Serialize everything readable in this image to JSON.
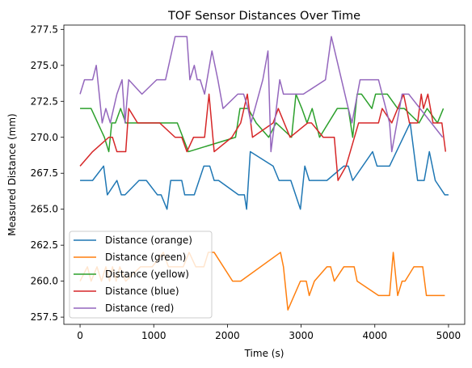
{
  "chart_data": {
    "type": "line",
    "title": "TOF Sensor Distances Over Time",
    "xlabel": "Time (s)",
    "ylabel": "Measured Distance (mm)",
    "xlim": [
      -220,
      5220
    ],
    "ylim": [
      257.0,
      277.8
    ],
    "x_ticks": [
      0,
      1000,
      2000,
      3000,
      4000,
      5000
    ],
    "x_tick_labels": [
      "0",
      "1000",
      "2000",
      "3000",
      "4000",
      "5000"
    ],
    "y_ticks": [
      257.5,
      260.0,
      262.5,
      265.0,
      267.5,
      270.0,
      272.5,
      275.0,
      277.5
    ],
    "y_tick_labels": [
      "257.5",
      "260.0",
      "262.5",
      "265.0",
      "267.5",
      "270.0",
      "272.5",
      "275.0",
      "277.5"
    ],
    "grid": false,
    "legend_position": "lower-left",
    "series": [
      {
        "name": "Distance (orange)",
        "color": "#1f77b4",
        "x": [
          0,
          170,
          320,
          370,
          500,
          560,
          610,
          800,
          900,
          1050,
          1100,
          1180,
          1230,
          1380,
          1420,
          1550,
          1680,
          1760,
          1820,
          1880,
          2150,
          2230,
          2260,
          2310,
          2620,
          2700,
          2860,
          2990,
          3050,
          3110,
          3350,
          3580,
          3640,
          3700,
          3970,
          4030,
          4200,
          4480,
          4580,
          4670,
          4740,
          4820,
          4950,
          5000
        ],
        "y": [
          267,
          267,
          268,
          266,
          267,
          266,
          266,
          267,
          267,
          266,
          266,
          265,
          267,
          267,
          266,
          266,
          268,
          268,
          267,
          267,
          266,
          266,
          265,
          269,
          268,
          267,
          267,
          265,
          268,
          267,
          267,
          268,
          268,
          267,
          269,
          268,
          268,
          271,
          267,
          267,
          269,
          267,
          266,
          266
        ]
      },
      {
        "name": "Distance (green)",
        "color": "#ff7f0e",
        "x": [
          0,
          100,
          150,
          230,
          290,
          350,
          400,
          440,
          490,
          540,
          620,
          820,
          980,
          1130,
          1200,
          1300,
          1400,
          1480,
          1570,
          1680,
          1740,
          1820,
          2070,
          2180,
          2720,
          2760,
          2820,
          2990,
          3070,
          3110,
          3180,
          3350,
          3400,
          3450,
          3580,
          3720,
          3760,
          4050,
          4200,
          4250,
          4310,
          4370,
          4410,
          4530,
          4650,
          4700,
          4850,
          4950
        ],
        "y": [
          260,
          261,
          260,
          261,
          260,
          261,
          260,
          261,
          260,
          261,
          260,
          261,
          261,
          262,
          261,
          261,
          261,
          262,
          261,
          261,
          262,
          262,
          260,
          260,
          262,
          261,
          258,
          260,
          260,
          259,
          260,
          261,
          261,
          260,
          261,
          261,
          260,
          259,
          259,
          262,
          259,
          260,
          260,
          261,
          261,
          259,
          259,
          259
        ]
      },
      {
        "name": "Distance (yellow)",
        "color": "#2ca02c",
        "x": [
          0,
          150,
          330,
          390,
          430,
          480,
          550,
          620,
          980,
          1320,
          1470,
          2110,
          2170,
          2280,
          2390,
          2560,
          2660,
          2870,
          2930,
          3010,
          3080,
          3150,
          3250,
          3490,
          3640,
          3700,
          3760,
          3820,
          3960,
          4010,
          4170,
          4310,
          4400,
          4600,
          4710,
          4850,
          4930
        ],
        "y": [
          272,
          272,
          270,
          269,
          271,
          271,
          272,
          271,
          271,
          271,
          269,
          270,
          272,
          272,
          271,
          270,
          271,
          270,
          273,
          272,
          271,
          272,
          270,
          272,
          272,
          270,
          273,
          273,
          272,
          273,
          273,
          272,
          272,
          271,
          272,
          271,
          272
        ]
      },
      {
        "name": "Distance (blue)",
        "color": "#d62728",
        "x": [
          0,
          170,
          390,
          440,
          500,
          620,
          660,
          780,
          960,
          1080,
          1290,
          1380,
          1450,
          1540,
          1690,
          1750,
          1820,
          2060,
          2180,
          2270,
          2340,
          2620,
          2690,
          2850,
          3090,
          3140,
          3300,
          3450,
          3500,
          3610,
          3780,
          3840,
          4050,
          4100,
          4230,
          4390,
          4470,
          4580,
          4630,
          4660,
          4720,
          4790,
          4910,
          4960
        ],
        "y": [
          268,
          269,
          270,
          270,
          269,
          269,
          272,
          271,
          271,
          271,
          270,
          270,
          269,
          270,
          270,
          273,
          269,
          270,
          271,
          273,
          270,
          271,
          272,
          270,
          271,
          271,
          270,
          270,
          267,
          268,
          271,
          271,
          271,
          272,
          271,
          273,
          271,
          271,
          273,
          272,
          273,
          271,
          271,
          269
        ]
      },
      {
        "name": "Distance (red)",
        "color": "#9467bd",
        "x": [
          0,
          60,
          170,
          220,
          300,
          350,
          410,
          500,
          570,
          610,
          660,
          840,
          1040,
          1160,
          1290,
          1310,
          1450,
          1490,
          1550,
          1590,
          1630,
          1690,
          1790,
          1870,
          1940,
          2140,
          2220,
          2280,
          2320,
          2480,
          2550,
          2590,
          2640,
          2710,
          2760,
          2830,
          2890,
          2940,
          3030,
          3330,
          3410,
          3640,
          3690,
          3800,
          4050,
          4200,
          4230,
          4370,
          4410,
          4460,
          4920
        ],
        "y": [
          273,
          274,
          274,
          275,
          271,
          272,
          271,
          273,
          274,
          271,
          274,
          273,
          274,
          274,
          277,
          277,
          277,
          274,
          275,
          274,
          274,
          273,
          276,
          274,
          272,
          273,
          273,
          272,
          271,
          274,
          276,
          269,
          271,
          274,
          273,
          273,
          273,
          273,
          273,
          274,
          277,
          272,
          271,
          274,
          274,
          271,
          269,
          273,
          273,
          273,
          270
        ]
      }
    ]
  }
}
